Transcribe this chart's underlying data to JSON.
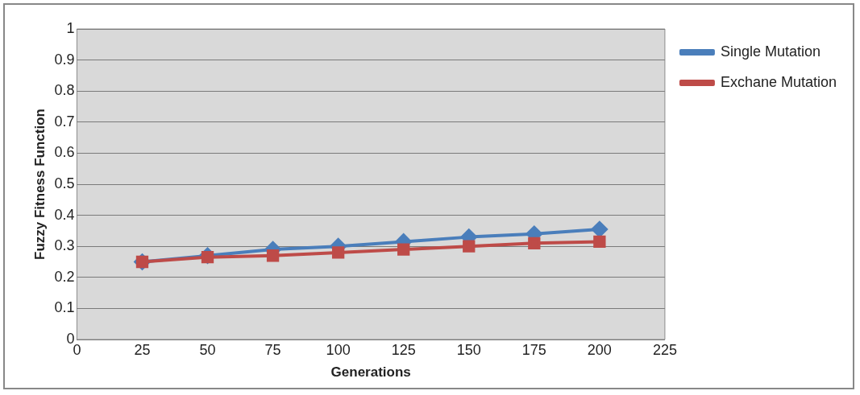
{
  "chart_data": {
    "type": "line",
    "xlabel": "Generations",
    "ylabel": "Fuzzy Fitness Function",
    "x": [
      25,
      50,
      75,
      100,
      125,
      150,
      175,
      200
    ],
    "series": [
      {
        "name": "Single Mutation",
        "color": "#4a7ebb",
        "marker": "diamond",
        "values": [
          0.25,
          0.27,
          0.29,
          0.3,
          0.315,
          0.33,
          0.34,
          0.355
        ]
      },
      {
        "name": "Exchane Mutation",
        "color": "#be4b48",
        "marker": "square",
        "values": [
          0.25,
          0.265,
          0.27,
          0.28,
          0.29,
          0.3,
          0.31,
          0.315
        ]
      }
    ],
    "xlim": [
      0,
      225
    ],
    "xticks": [
      0,
      25,
      50,
      75,
      100,
      125,
      150,
      175,
      200,
      225
    ],
    "ylim": [
      0,
      1
    ],
    "yticks": [
      0,
      0.1,
      0.2,
      0.3,
      0.4,
      0.5,
      0.6,
      0.7,
      0.8,
      0.9,
      1
    ],
    "grid": "y",
    "legend": "right"
  }
}
